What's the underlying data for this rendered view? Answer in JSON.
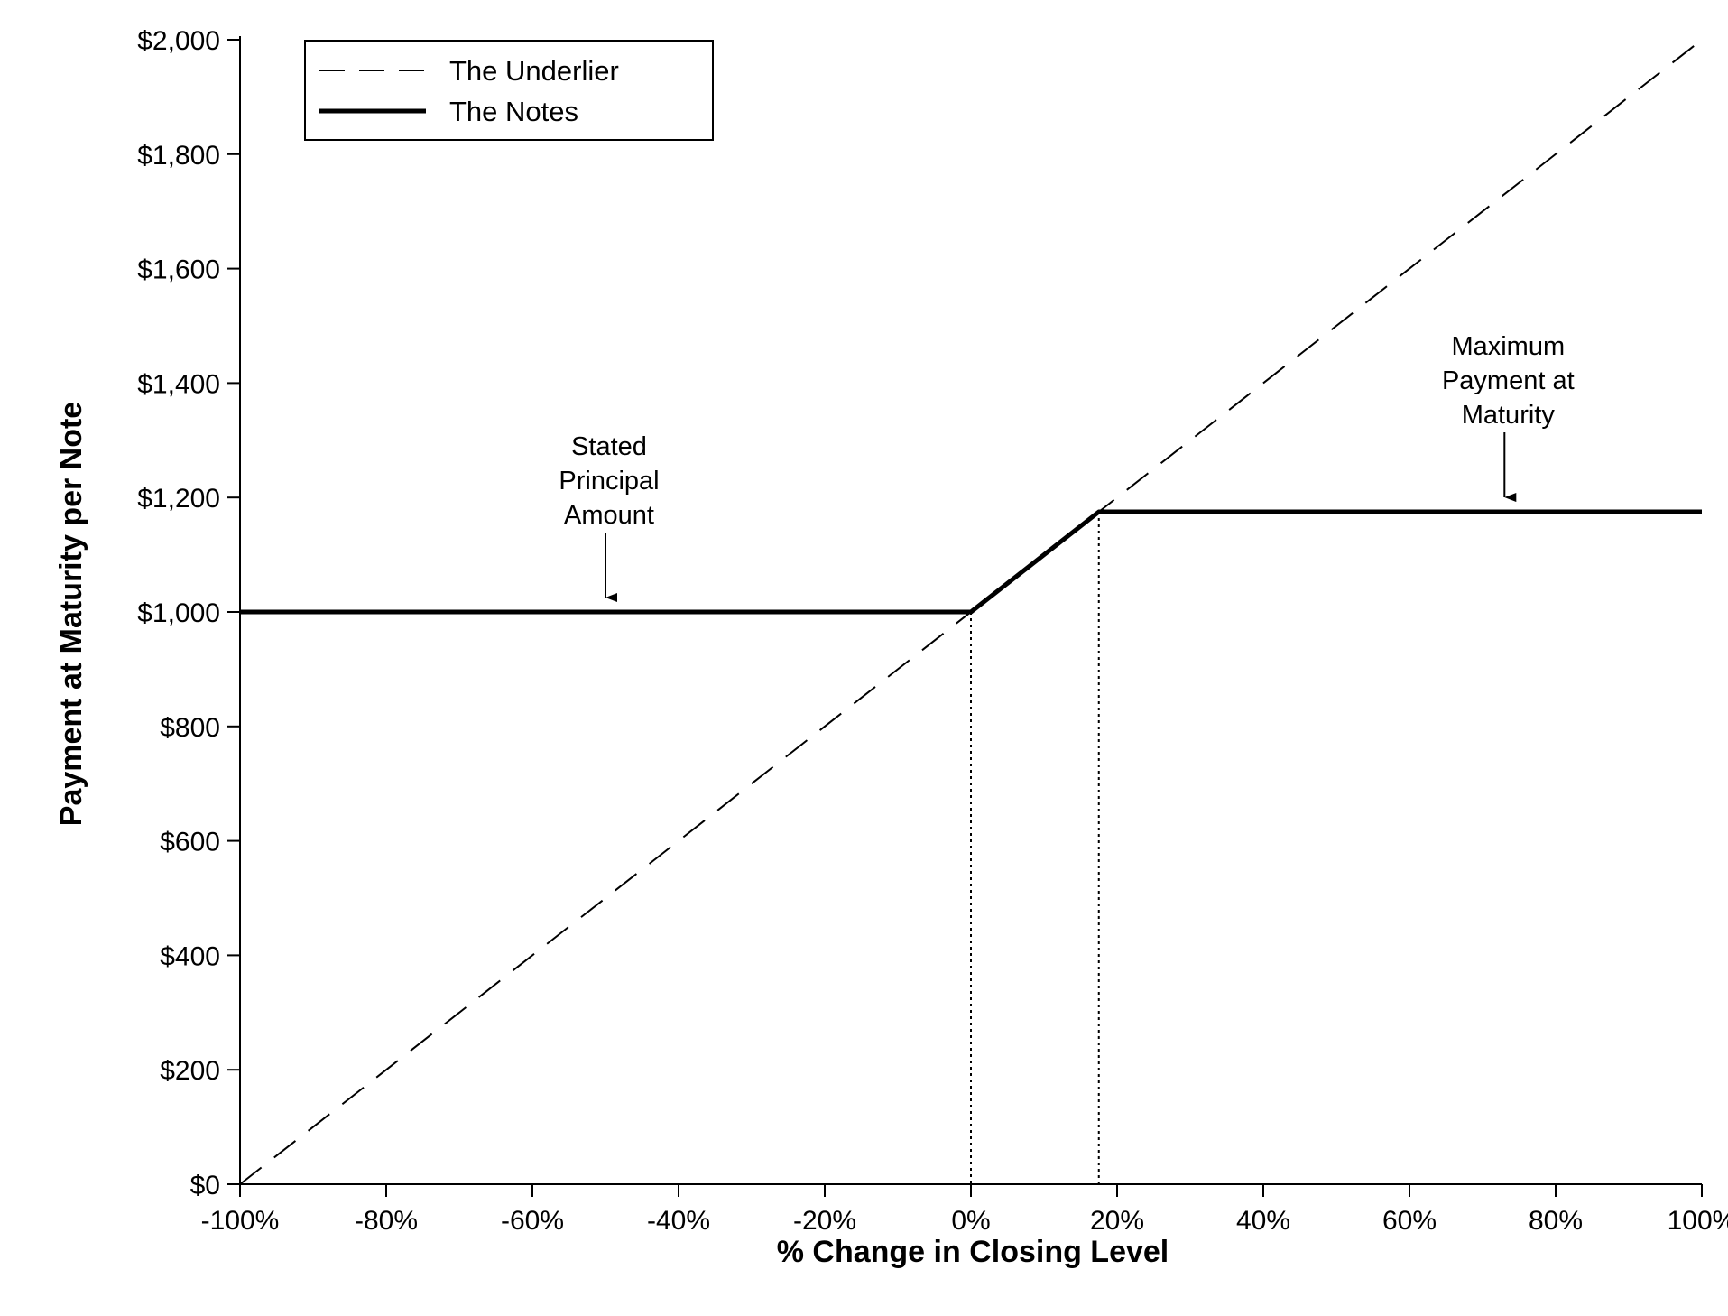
{
  "chart_data": {
    "type": "line",
    "title": "",
    "xlabel": "% Change in Closing Level",
    "ylabel": "Payment at Maturity per Note",
    "xlim": [
      -100,
      100
    ],
    "ylim": [
      0,
      2000
    ],
    "x_ticks": [
      -100,
      -80,
      -60,
      -40,
      -20,
      0,
      20,
      40,
      60,
      80,
      100
    ],
    "x_tick_labels": [
      "-100%",
      "-80%",
      "-60%",
      "-40%",
      "-20%",
      "0%",
      "20%",
      "40%",
      "60%",
      "80%",
      "100%"
    ],
    "y_ticks": [
      0,
      200,
      400,
      600,
      800,
      1000,
      1200,
      1400,
      1600,
      1800,
      2000
    ],
    "y_tick_labels": [
      "$0",
      "$200",
      "$400",
      "$600",
      "$800",
      "$1,000",
      "$1,200",
      "$1,400",
      "$1,600",
      "$1,800",
      "$2,000"
    ],
    "grid": false,
    "legend_position": "top-left",
    "series": [
      {
        "name": "The Underlier",
        "style": "dashed",
        "x": [
          -100,
          100
        ],
        "y": [
          0,
          2000
        ]
      },
      {
        "name": "The Notes",
        "style": "solid-thick",
        "x": [
          -100,
          0,
          17.5,
          100
        ],
        "y": [
          1000,
          1000,
          1175,
          1175
        ]
      }
    ],
    "reference_lines": [
      {
        "x": 0,
        "y_top": 1000
      },
      {
        "x": 17.5,
        "y_top": 1175
      }
    ],
    "annotations": [
      {
        "lines": [
          "Stated",
          "Principal",
          "Amount"
        ],
        "x": -50,
        "y": 1000
      },
      {
        "lines": [
          "Maximum",
          "Payment at",
          "Maturity"
        ],
        "x": 73,
        "y": 1175
      }
    ],
    "colors": {
      "line": "#000000",
      "background": "#ffffff"
    }
  }
}
